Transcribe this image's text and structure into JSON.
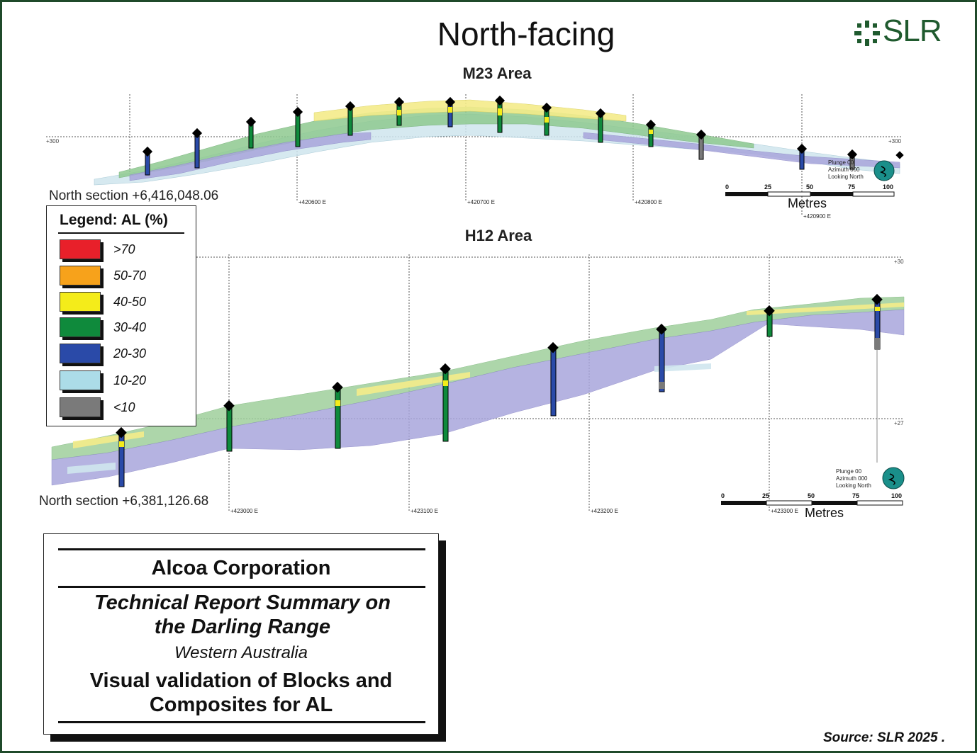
{
  "title": "North-facing",
  "logo": {
    "text": "SLR",
    "icon": "slr-asterisk-icon",
    "color": "#1f5a2e"
  },
  "sections": {
    "m23": {
      "area_title": "M23 Area",
      "section_label": "North section +6,416,048.06",
      "rl_left": "+300",
      "rl_right": "+300",
      "eastings": [
        "+420600 E",
        "+420700 E",
        "+420800 E",
        "+420900 E"
      ],
      "orientation": [
        "Plunge 00",
        "Azimuth 000",
        "Looking North"
      ],
      "scale_ticks": [
        "0",
        "25",
        "50",
        "75",
        "100"
      ],
      "scale_unit": "Metres"
    },
    "h12": {
      "area_title": "H12 Area",
      "section_label": "North section +6,381,126.68",
      "rl_right_top": "+30",
      "rl_right_bottom": "+27",
      "eastings": [
        "+423000 E",
        "+423100 E",
        "+423200 E",
        "+423300 E"
      ],
      "orientation": [
        "Plunge 00",
        "Azimuth 000",
        "Looking North"
      ],
      "scale_ticks": [
        "0",
        "25",
        "50",
        "75",
        "100"
      ],
      "scale_unit": "Metres"
    }
  },
  "legend": {
    "title": "Legend: AL (%)",
    "items": [
      {
        "label": ">70",
        "color": "#e8202a"
      },
      {
        "label": "50-70",
        "color": "#f7a21b"
      },
      {
        "label": "40-50",
        "color": "#f4ec1a"
      },
      {
        "label": "30-40",
        "color": "#0f8a3c"
      },
      {
        "label": "20-30",
        "color": "#2a4aa8"
      },
      {
        "label": "10-20",
        "color": "#acdce8"
      },
      {
        "label": "<10",
        "color": "#7a7a7a"
      }
    ]
  },
  "title_box": {
    "company": "Alcoa Corporation",
    "report_line1": "Technical Report Summary on",
    "report_line2": "the Darling Range",
    "region": "Western Australia",
    "figure_line1": "Visual validation of Blocks and",
    "figure_line2": "Composites for AL"
  },
  "source": "Source:  SLR 2025 ."
}
